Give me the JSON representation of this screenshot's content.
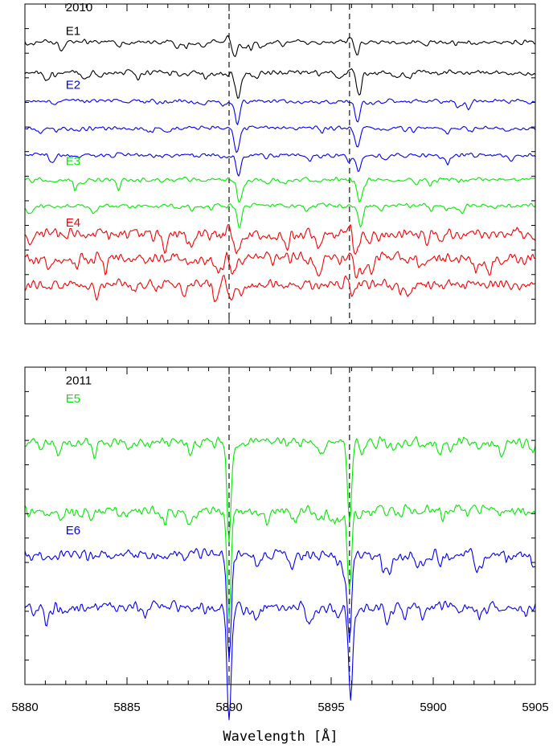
{
  "colors": {
    "black": "#000000",
    "blue": "#0000ff",
    "green": "#00ee00",
    "red": "#ff0000",
    "marker": "#000000"
  },
  "xlabel": "Wavelength [Å]",
  "chart_data": [
    {
      "type": "line",
      "panel": "top",
      "xlim": [
        5880,
        5905
      ],
      "ylim": [
        0,
        13
      ],
      "xticks": [
        5880,
        5885,
        5890,
        5895,
        5900,
        5905
      ],
      "xtick_labels": [
        "",
        "",
        "",
        "",
        "",
        ""
      ],
      "reference_lines": [
        5890.0,
        5895.9
      ],
      "annotations": [
        {
          "text": "2010",
          "color": "black",
          "x": 5882.0,
          "y": 12.7
        },
        {
          "text": "E1",
          "color": "black",
          "x": 5882.0,
          "y": 11.75
        },
        {
          "text": "E2",
          "color": "blue",
          "x": 5882.0,
          "y": 9.55
        },
        {
          "text": "E3",
          "color": "green",
          "x": 5882.0,
          "y": 6.45
        },
        {
          "text": "E4",
          "color": "red",
          "x": 5882.0,
          "y": 3.95
        }
      ],
      "series": [
        {
          "group": "E1",
          "color": "black",
          "offset": 11.45,
          "noise": 0.12,
          "line1": {
            "center": 5890.3,
            "depth": 0.55,
            "width": 0.1
          },
          "line2": {
            "center": 5896.25,
            "depth": 0.5,
            "width": 0.1
          },
          "emission": 0.25
        },
        {
          "group": "E1",
          "color": "black",
          "offset": 10.2,
          "noise": 0.14,
          "line1": {
            "center": 5890.45,
            "depth": 0.95,
            "width": 0.11
          },
          "line2": {
            "center": 5896.35,
            "depth": 0.85,
            "width": 0.11
          },
          "emission": 0.2
        },
        {
          "group": "E2",
          "color": "blue",
          "offset": 9.05,
          "noise": 0.11,
          "line1": {
            "center": 5890.4,
            "depth": 0.9,
            "width": 0.11
          },
          "line2": {
            "center": 5896.3,
            "depth": 0.7,
            "width": 0.11
          },
          "emission": 0.0
        },
        {
          "group": "E2",
          "color": "blue",
          "offset": 7.95,
          "noise": 0.11,
          "line1": {
            "center": 5890.4,
            "depth": 0.9,
            "width": 0.11
          },
          "line2": {
            "center": 5896.3,
            "depth": 0.75,
            "width": 0.11
          },
          "emission": 0.0
        },
        {
          "group": "E2",
          "color": "blue",
          "offset": 6.85,
          "noise": 0.11,
          "line1": {
            "center": 5890.45,
            "depth": 0.85,
            "width": 0.11
          },
          "line2": {
            "center": 5896.35,
            "depth": 0.7,
            "width": 0.11
          },
          "emission": 0.0
        },
        {
          "group": "E3",
          "color": "green",
          "offset": 5.85,
          "noise": 0.12,
          "line1": {
            "center": 5890.5,
            "depth": 0.9,
            "width": 0.11
          },
          "line2": {
            "center": 5896.4,
            "depth": 0.9,
            "width": 0.11
          },
          "emission": 0.0
        },
        {
          "group": "E3",
          "color": "green",
          "offset": 4.8,
          "noise": 0.12,
          "line1": {
            "center": 5890.5,
            "depth": 0.9,
            "width": 0.11
          },
          "line2": {
            "center": 5896.45,
            "depth": 0.85,
            "width": 0.11
          },
          "emission": 0.0
        },
        {
          "group": "E4",
          "color": "red",
          "offset": 3.65,
          "noise": 0.3,
          "line1": {
            "center": 5890.35,
            "depth": 0.8,
            "width": 0.12
          },
          "line2": {
            "center": 5896.25,
            "depth": 0.4,
            "width": 0.12
          },
          "emission": 0.45
        },
        {
          "group": "E4",
          "color": "red",
          "offset": 2.65,
          "noise": 0.3,
          "line1": {
            "center": 5890.2,
            "depth": 0.6,
            "width": 0.12
          },
          "line2": {
            "center": 5896.2,
            "depth": 0.45,
            "width": 0.12
          },
          "emission": 0.35
        },
        {
          "group": "E4",
          "color": "red",
          "offset": 1.6,
          "noise": 0.28,
          "line1": {
            "center": 5890.1,
            "depth": 0.6,
            "width": 0.12
          },
          "line2": {
            "center": 5896.1,
            "depth": 0.45,
            "width": 0.12
          },
          "emission": 0.3
        }
      ]
    },
    {
      "type": "line",
      "panel": "bottom",
      "xlim": [
        5880,
        5905
      ],
      "ylim": [
        0,
        13
      ],
      "xticks": [
        5880,
        5885,
        5890,
        5895,
        5900,
        5905
      ],
      "xtick_labels": [
        "5880",
        "5885",
        "5890",
        "5895",
        "5900",
        "5905"
      ],
      "reference_lines": [
        5890.0,
        5895.9
      ],
      "annotations": [
        {
          "text": "2011",
          "color": "black",
          "x": 5882.0,
          "y": 12.3
        },
        {
          "text": "E5",
          "color": "green",
          "x": 5882.0,
          "y": 11.55
        },
        {
          "text": "E6",
          "color": "blue",
          "x": 5882.0,
          "y": 6.15
        }
      ],
      "series": [
        {
          "group": "E5",
          "color": "green",
          "offset": 9.9,
          "noise": 0.28,
          "line1": {
            "center": 5890.0,
            "depth": 4.1,
            "width": 0.1
          },
          "line2": {
            "center": 5895.9,
            "depth": 3.3,
            "width": 0.1
          },
          "emission": 0.0
        },
        {
          "group": "E5",
          "color": "green",
          "offset": 7.1,
          "noise": 0.3,
          "line1": {
            "center": 5890.0,
            "depth": 4.2,
            "width": 0.1
          },
          "line2": {
            "center": 5895.9,
            "depth": 3.3,
            "width": 0.1
          },
          "emission": 0.0
        },
        {
          "group": "E6",
          "color": "blue",
          "offset": 5.3,
          "noise": 0.3,
          "line1": {
            "center": 5890.0,
            "depth": 4.4,
            "width": 0.1
          },
          "line2": {
            "center": 5895.9,
            "depth": 3.5,
            "width": 0.1
          },
          "emission": 0.0
        },
        {
          "group": "E6",
          "color": "blue",
          "offset": 3.15,
          "noise": 0.3,
          "line1": {
            "center": 5890.0,
            "depth": 4.6,
            "width": 0.1
          },
          "line2": {
            "center": 5895.95,
            "depth": 3.8,
            "width": 0.1
          },
          "emission": 0.0
        }
      ]
    }
  ]
}
